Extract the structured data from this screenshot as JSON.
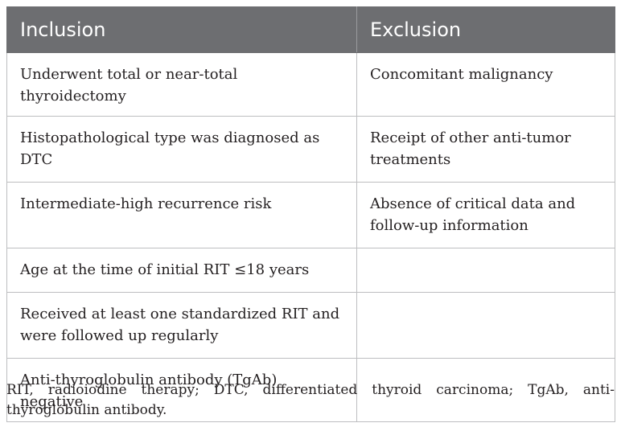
{
  "table": {
    "headers": [
      "Inclusion",
      "Exclusion"
    ],
    "rows": [
      {
        "inclusion": "Underwent total or near-total thyroidectomy",
        "exclusion": "Concomitant malignancy"
      },
      {
        "inclusion": "Histopathological type was diagnosed as DTC",
        "exclusion": "Receipt of other anti-tumor treatments"
      },
      {
        "inclusion": "Intermediate-high recurrence risk",
        "exclusion": "Absence of critical data and follow-up information"
      },
      {
        "inclusion": "Age at the time of initial RIT ≤18 years",
        "exclusion": ""
      },
      {
        "inclusion": "Received at least one standardized RIT and were followed up regularly",
        "exclusion": ""
      },
      {
        "inclusion": "Anti-thyroglobulin antibody (TgAb) negative",
        "exclusion": ""
      }
    ]
  },
  "footnote": "RIT, radioiodine therapy; DTC, differentiated thyroid carcinoma; TgAb, anti-thyroglobulin antibody."
}
